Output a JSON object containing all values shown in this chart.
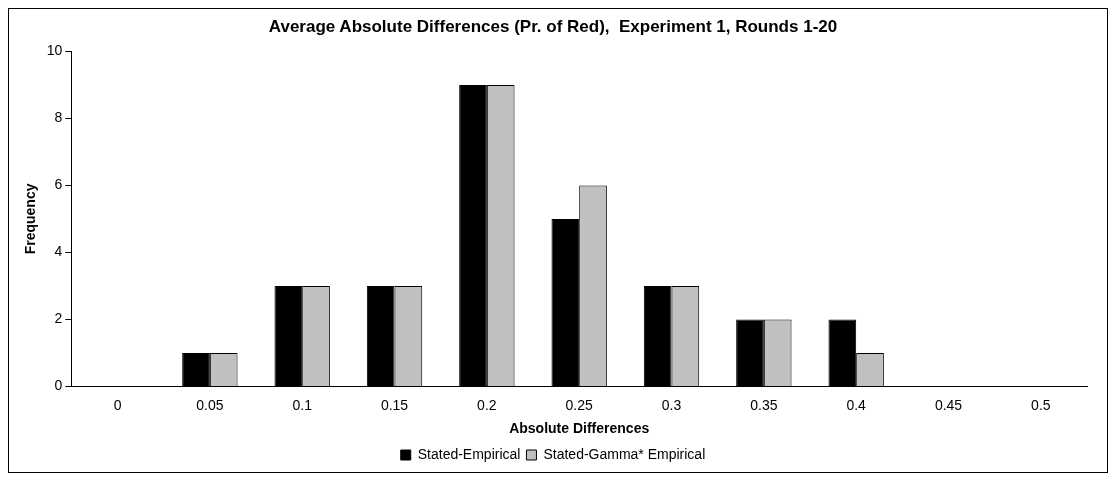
{
  "chart_data": {
    "type": "bar",
    "title": "Average Absolute Differences (Pr. of Red),  Experiment 1, Rounds 1-20",
    "xlabel": "Absolute Differences",
    "ylabel": "Frequency",
    "categories": [
      "0",
      "0.05",
      "0.1",
      "0.15",
      "0.2",
      "0.25",
      "0.3",
      "0.35",
      "0.4",
      "0.45",
      "0.5"
    ],
    "series": [
      {
        "name": "Stated-Empirical",
        "color": "#000000",
        "values": [
          0,
          1,
          3,
          3,
          9,
          5,
          3,
          2,
          2,
          0,
          0
        ]
      },
      {
        "name": "Stated-Gamma* Empirical",
        "color": "#c0c0c0",
        "values": [
          0,
          1,
          3,
          3,
          9,
          6,
          3,
          2,
          1,
          0,
          0
        ]
      }
    ],
    "ylim": [
      0,
      10
    ],
    "yticks": [
      0,
      2,
      4,
      6,
      8,
      10
    ],
    "grid": false,
    "legend": "bottom"
  }
}
